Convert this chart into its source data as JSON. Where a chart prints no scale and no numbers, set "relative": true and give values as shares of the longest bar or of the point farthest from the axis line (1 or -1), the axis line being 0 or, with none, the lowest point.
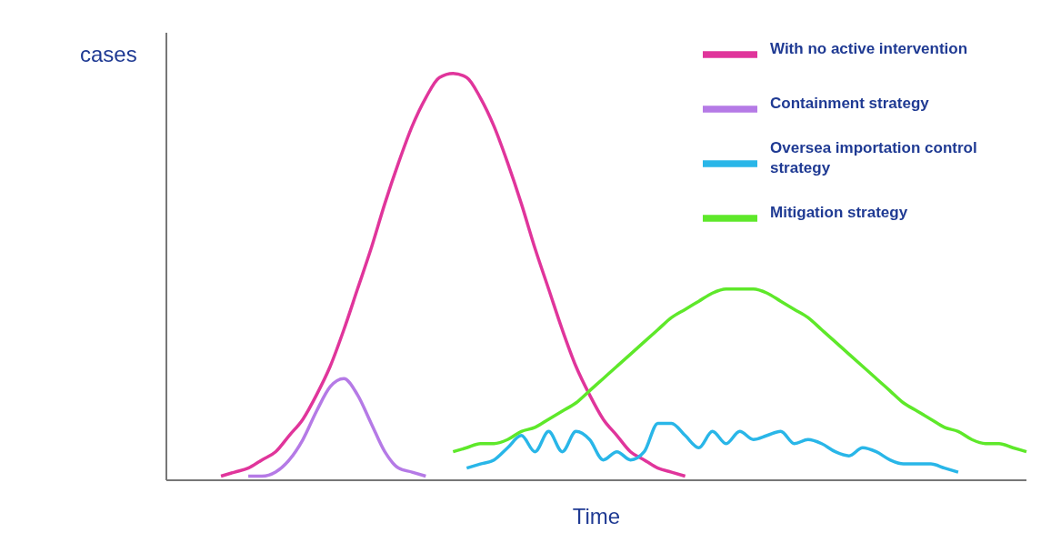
{
  "chart_data": {
    "type": "line",
    "relative": true,
    "xlabel": "Time",
    "ylabel": "cases",
    "legend": "top right",
    "grid": false,
    "marker": "none",
    "line_style": "solid",
    "categories": [
      null,
      null,
      null,
      null,
      null,
      null,
      null,
      null,
      null,
      null,
      null,
      null,
      null,
      null,
      null,
      null,
      null,
      null,
      null,
      null,
      null,
      null,
      null,
      null,
      null,
      null,
      null,
      null,
      null,
      null,
      null,
      null,
      null,
      null,
      null,
      null,
      null,
      null,
      null,
      null,
      null,
      null,
      null,
      null,
      null,
      null,
      null,
      null,
      null,
      null,
      null,
      null,
      null,
      null,
      null,
      null,
      null,
      null,
      null,
      null,
      null,
      null,
      null,
      null
    ],
    "series": [
      {
        "name": "With no active intervention",
        "color": "#e0359b",
        "values": [
          null,
          null,
          null,
          null,
          0.01,
          0.02,
          0.03,
          0.05,
          0.07,
          0.11,
          0.15,
          0.21,
          0.28,
          0.37,
          0.47,
          0.57,
          0.68,
          0.78,
          0.87,
          0.94,
          0.99,
          1,
          0.99,
          0.94,
          0.87,
          0.78,
          0.68,
          0.57,
          0.47,
          0.37,
          0.28,
          0.21,
          0.15,
          0.11,
          0.07,
          0.05,
          0.03,
          0.02,
          0.01,
          null,
          null,
          null,
          null,
          null,
          null,
          null,
          null,
          null,
          null,
          null,
          null,
          null,
          null,
          null,
          null,
          null,
          null,
          null,
          null,
          null,
          null,
          null,
          null,
          null
        ]
      },
      {
        "name": "Containment strategy",
        "color": "#b57ae6",
        "values": [
          null,
          null,
          null,
          null,
          null,
          null,
          0.01,
          0.01,
          0.02,
          0.05,
          0.1,
          0.17,
          0.23,
          0.25,
          0.21,
          0.14,
          0.07,
          0.03,
          0.02,
          0.01,
          null,
          null,
          null,
          null,
          null,
          null,
          null,
          null,
          null,
          null,
          null,
          null,
          null,
          null,
          null,
          null,
          null,
          null,
          null,
          null,
          null,
          null,
          null,
          null,
          null,
          null,
          null,
          null,
          null,
          null,
          null,
          null,
          null,
          null,
          null,
          null,
          null,
          null,
          null,
          null,
          null,
          null,
          null,
          null
        ]
      },
      {
        "name": "Oversea importation control strategy",
        "color": "#29b6e8",
        "values": [
          null,
          null,
          null,
          null,
          null,
          null,
          null,
          null,
          null,
          null,
          null,
          null,
          null,
          null,
          null,
          null,
          null,
          null,
          null,
          null,
          null,
          null,
          0.03,
          0.04,
          0.05,
          0.08,
          0.11,
          0.07,
          0.12,
          0.07,
          0.12,
          0.1,
          0.05,
          0.07,
          0.05,
          0.07,
          0.14,
          0.14,
          0.11,
          0.08,
          0.12,
          0.09,
          0.12,
          0.1,
          0.11,
          0.12,
          0.09,
          0.1,
          0.09,
          0.07,
          0.06,
          0.08,
          0.07,
          0.05,
          0.04,
          0.04,
          0.04,
          0.03,
          0.02,
          null,
          null,
          null,
          null,
          null
        ]
      },
      {
        "name": "Mitigation strategy",
        "color": "#5ee82a",
        "values": [
          null,
          null,
          null,
          null,
          null,
          null,
          null,
          null,
          null,
          null,
          null,
          null,
          null,
          null,
          null,
          null,
          null,
          null,
          null,
          null,
          null,
          0.07,
          0.08,
          0.09,
          0.09,
          0.1,
          0.12,
          0.13,
          0.15,
          0.17,
          0.19,
          0.22,
          0.25,
          0.28,
          0.31,
          0.34,
          0.37,
          0.4,
          0.42,
          0.44,
          0.46,
          0.47,
          0.47,
          0.47,
          0.46,
          0.44,
          0.42,
          0.4,
          0.37,
          0.34,
          0.31,
          0.28,
          0.25,
          0.22,
          0.19,
          0.17,
          0.15,
          0.13,
          0.12,
          0.1,
          0.09,
          0.09,
          0.08,
          0.07
        ]
      }
    ]
  }
}
